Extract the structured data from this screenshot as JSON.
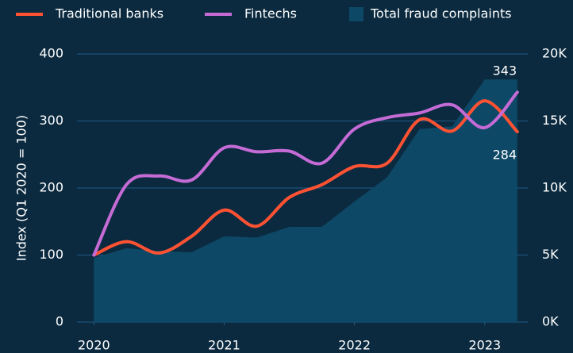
{
  "chart_data": {
    "type": "line",
    "ylabel": "Index (Q1 2020 = 100)",
    "x": [
      2020,
      2020.25,
      2020.5,
      2020.75,
      2021,
      2021.25,
      2021.5,
      2021.75,
      2022,
      2022.25,
      2022.5,
      2022.75,
      2023,
      2023.25
    ],
    "xlim": [
      2019.87,
      2023.33
    ],
    "xticks": [
      2020,
      2021,
      2022,
      2023
    ],
    "ylim": [
      0,
      400
    ],
    "yticks": [
      0,
      100,
      200,
      300,
      400
    ],
    "y2lim": [
      0,
      20000
    ],
    "y2ticks": [
      {
        "value": 0,
        "label": "0K"
      },
      {
        "value": 5000,
        "label": "5K"
      },
      {
        "value": 10000,
        "label": "10K"
      },
      {
        "value": 15000,
        "label": "15K"
      },
      {
        "value": 20000,
        "label": "20K"
      }
    ],
    "grid": true,
    "legend": "top",
    "label_last": true,
    "series": [
      {
        "name": "Total fraud complaints",
        "type": "area",
        "axis": "y2",
        "color": "#0d4866",
        "values": [
          4800,
          5500,
          5300,
          5200,
          6400,
          6300,
          7100,
          7100,
          9000,
          10800,
          14400,
          14600,
          18100,
          18100
        ]
      },
      {
        "name": "Traditional banks",
        "type": "line",
        "color": "#ff5233",
        "values": [
          100,
          120,
          103,
          128,
          167,
          143,
          186,
          205,
          232,
          237,
          302,
          285,
          330,
          284
        ]
      },
      {
        "name": "Fintechs",
        "type": "line",
        "color": "#c56bd6",
        "values": [
          100,
          205,
          218,
          212,
          260,
          254,
          255,
          237,
          288,
          305,
          312,
          324,
          290,
          343
        ]
      }
    ]
  }
}
